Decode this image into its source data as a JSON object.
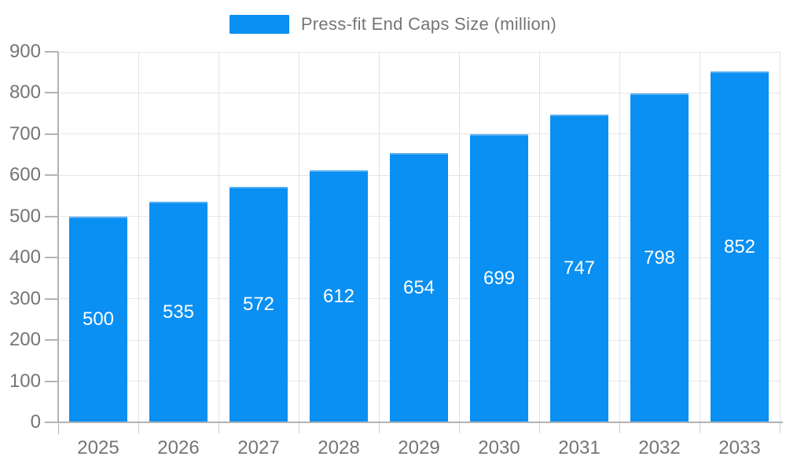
{
  "legend": {
    "label": "Press-fit End Caps Size (million)",
    "swatch_color": "#0a8ff2"
  },
  "chart_data": {
    "type": "bar",
    "title": "Press-fit End Caps Size (million)",
    "series_name": "Press-fit End Caps Size (million)",
    "categories": [
      "2025",
      "2026",
      "2027",
      "2028",
      "2029",
      "2030",
      "2031",
      "2032",
      "2033"
    ],
    "values": [
      500,
      535,
      572,
      612,
      654,
      699,
      747,
      798,
      852
    ],
    "value_labels": [
      "500",
      "535",
      "572",
      "612",
      "654",
      "699",
      "747",
      "798",
      "852"
    ],
    "xlabel": "",
    "ylabel": "",
    "ylim": [
      0,
      900
    ],
    "yticks": [
      0,
      100,
      200,
      300,
      400,
      500,
      600,
      700,
      800,
      900
    ],
    "ytick_labels": [
      "0",
      "100",
      "200",
      "300",
      "400",
      "500",
      "600",
      "700",
      "800",
      "900"
    ],
    "grid": true,
    "legend_position": "top",
    "colors": {
      "bar_fill": "#0a8ff2",
      "bar_top_edge": "#55aef3",
      "axis_line": "#b3b3b3",
      "grid_line": "#e6e6e6",
      "tick_text": "#757575",
      "bar_value_text": "#ffffff",
      "background": "#ffffff"
    }
  }
}
